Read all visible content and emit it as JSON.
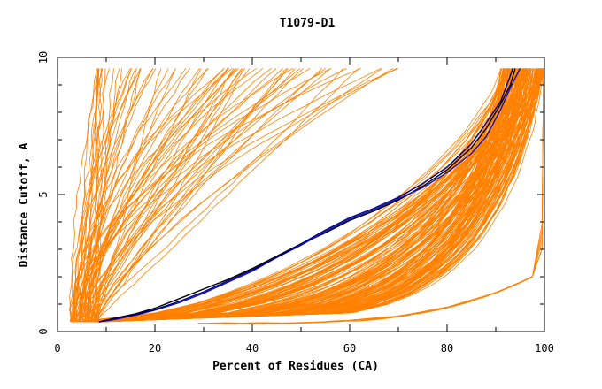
{
  "chart_data": {
    "type": "line",
    "title": "T1079-D1",
    "xlabel": "Percent of Residues (CA)",
    "ylabel": "Distance Cutoff, A",
    "xlim": [
      0,
      100
    ],
    "ylim": [
      0,
      10
    ],
    "x_ticks": [
      "0",
      "20",
      "40",
      "60",
      "80",
      "100"
    ],
    "y_ticks": [
      "0",
      "5",
      "10"
    ],
    "colors": {
      "background_models": "#ff8000",
      "highlight_black": "#000000",
      "highlight_blue": "#1010c0",
      "highlight_navy": "#000080"
    },
    "grid": false,
    "legend": "none",
    "series": [
      {
        "color": "black",
        "points": [
          [
            8.5,
            0.35
          ],
          [
            12,
            0.5
          ],
          [
            16,
            0.65
          ],
          [
            20,
            0.85
          ],
          [
            25,
            1.2
          ],
          [
            30,
            1.55
          ],
          [
            35,
            1.9
          ],
          [
            40,
            2.3
          ],
          [
            45,
            2.75
          ],
          [
            50,
            3.2
          ],
          [
            55,
            3.6
          ],
          [
            60,
            4.05
          ],
          [
            65,
            4.4
          ],
          [
            70,
            4.8
          ],
          [
            75,
            5.3
          ],
          [
            80,
            5.9
          ],
          [
            85,
            6.7
          ],
          [
            88,
            7.4
          ],
          [
            91,
            8.3
          ],
          [
            93,
            9.0
          ],
          [
            94,
            9.6
          ]
        ]
      },
      {
        "color": "blue",
        "points": [
          [
            8.5,
            0.35
          ],
          [
            12,
            0.45
          ],
          [
            16,
            0.6
          ],
          [
            20,
            0.78
          ],
          [
            25,
            1.05
          ],
          [
            30,
            1.4
          ],
          [
            35,
            1.8
          ],
          [
            40,
            2.2
          ],
          [
            45,
            2.7
          ],
          [
            50,
            3.15
          ],
          [
            55,
            3.65
          ],
          [
            60,
            4.1
          ],
          [
            65,
            4.45
          ],
          [
            70,
            4.85
          ],
          [
            75,
            5.25
          ],
          [
            80,
            5.8
          ],
          [
            85,
            6.5
          ],
          [
            88,
            7.1
          ],
          [
            91,
            8.1
          ],
          [
            93,
            8.9
          ],
          [
            95,
            9.6
          ]
        ]
      },
      {
        "color": "navy",
        "points": [
          [
            8.5,
            0.35
          ],
          [
            12,
            0.47
          ],
          [
            16,
            0.62
          ],
          [
            20,
            0.8
          ],
          [
            25,
            1.1
          ],
          [
            30,
            1.45
          ],
          [
            35,
            1.85
          ],
          [
            40,
            2.25
          ],
          [
            45,
            2.7
          ],
          [
            50,
            3.2
          ],
          [
            55,
            3.7
          ],
          [
            60,
            4.15
          ],
          [
            65,
            4.5
          ],
          [
            70,
            4.9
          ],
          [
            75,
            5.4
          ],
          [
            80,
            6.0
          ],
          [
            85,
            6.85
          ],
          [
            88,
            7.6
          ],
          [
            91,
            8.4
          ],
          [
            92.5,
            9.1
          ],
          [
            93.5,
            9.6
          ]
        ]
      }
    ]
  }
}
